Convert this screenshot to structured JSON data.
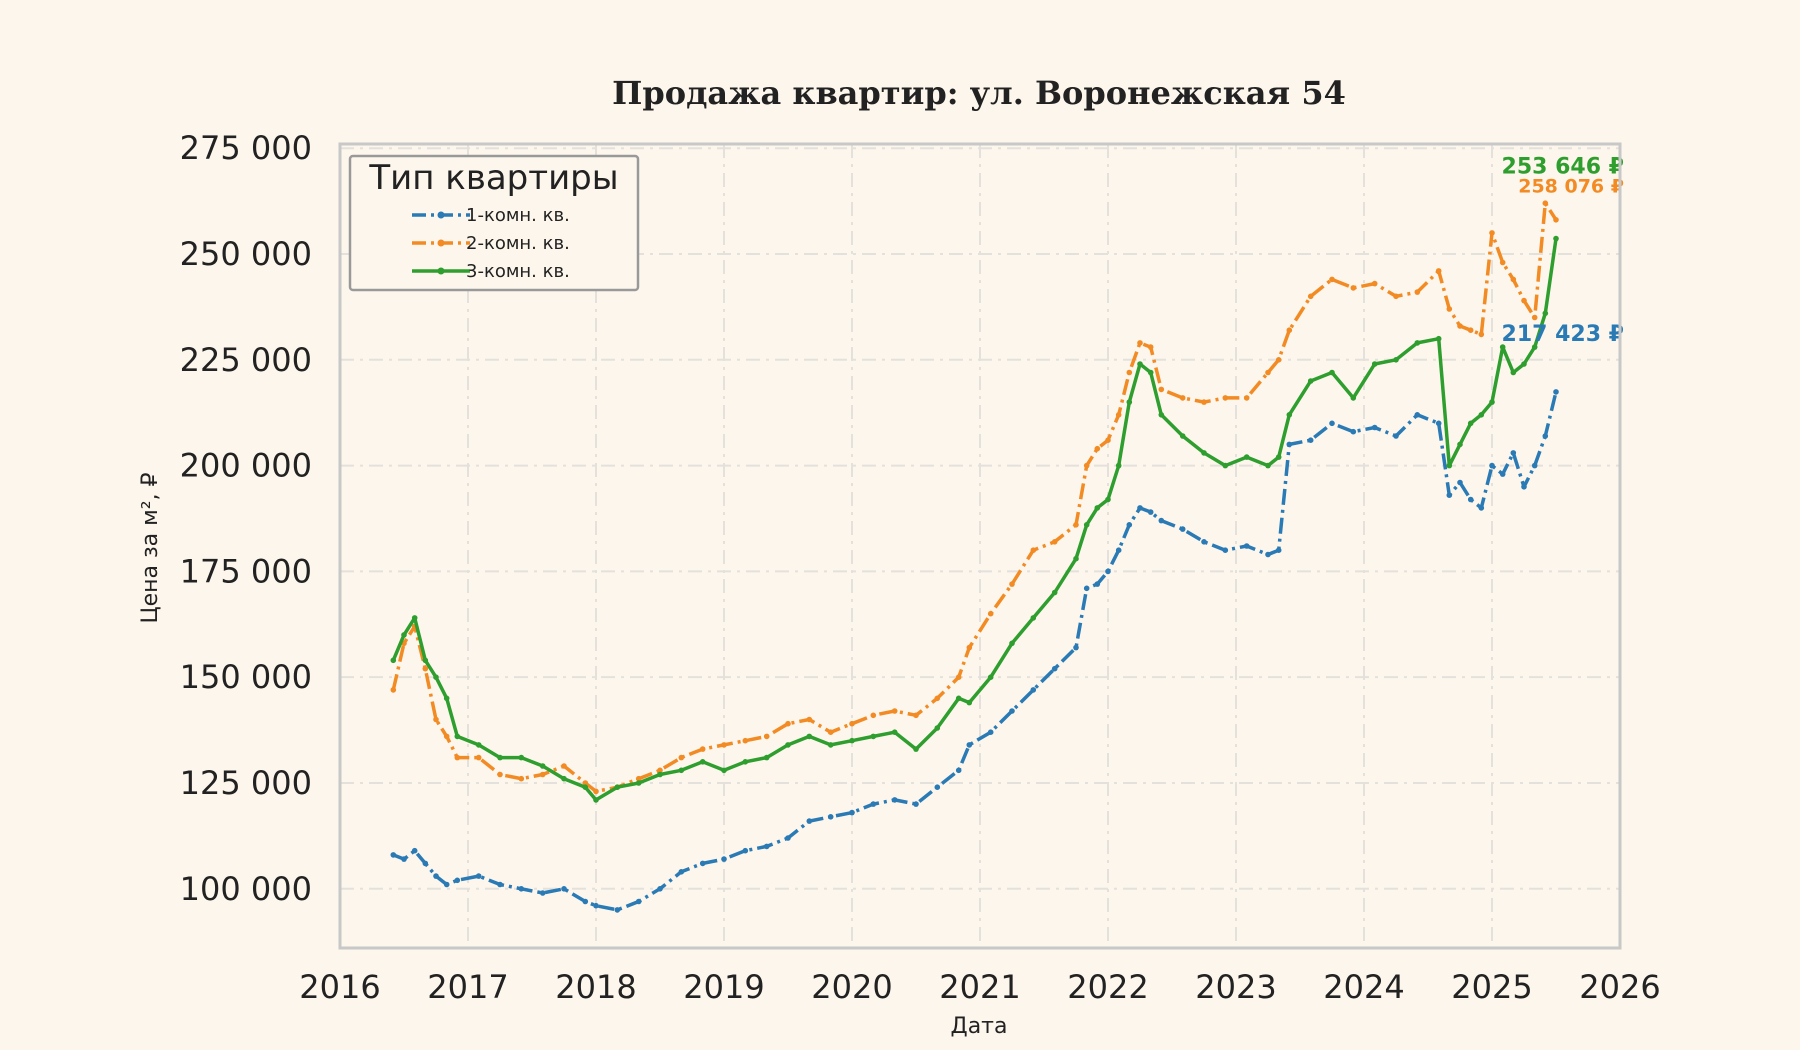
{
  "chart_data": {
    "type": "line",
    "title": "Продажа квартир: ул. Воронежская 54",
    "xlabel": "Дата",
    "ylabel": "Цена за м², ₽",
    "xlim": [
      "2016-01-01",
      "2026-01-01"
    ],
    "ylim": [
      86000,
      276000
    ],
    "x_ticks": [
      "2016",
      "2017",
      "2018",
      "2019",
      "2020",
      "2021",
      "2022",
      "2023",
      "2024",
      "2025",
      "2026"
    ],
    "y_ticks": [
      100000,
      125000,
      150000,
      175000,
      200000,
      225000,
      250000,
      275000
    ],
    "y_tick_labels": [
      "100 000",
      "125 000",
      "150 000",
      "175 000",
      "200 000",
      "225 000",
      "250 000",
      "275 000"
    ],
    "grid": true,
    "legend": {
      "title": "Тип квартиры",
      "position": "top-left"
    },
    "series": [
      {
        "name": "1-комн. кв.",
        "color": "#2a7ab5",
        "style": "dash-dot",
        "end_label": "217 423 ₽",
        "x": [
          "2016-06",
          "2016-07",
          "2016-08",
          "2016-09",
          "2016-10",
          "2016-11",
          "2016-12",
          "2017-02",
          "2017-04",
          "2017-06",
          "2017-08",
          "2017-10",
          "2017-12",
          "2018-01",
          "2018-03",
          "2018-05",
          "2018-07",
          "2018-09",
          "2018-11",
          "2019-01",
          "2019-03",
          "2019-05",
          "2019-07",
          "2019-09",
          "2019-11",
          "2020-01",
          "2020-03",
          "2020-05",
          "2020-07",
          "2020-09",
          "2020-11",
          "2020-12",
          "2021-02",
          "2021-04",
          "2021-06",
          "2021-08",
          "2021-10",
          "2021-11",
          "2021-12",
          "2022-01",
          "2022-02",
          "2022-03",
          "2022-04",
          "2022-05",
          "2022-06",
          "2022-08",
          "2022-10",
          "2022-12",
          "2023-02",
          "2023-04",
          "2023-05",
          "2023-06",
          "2023-08",
          "2023-10",
          "2023-12",
          "2024-02",
          "2024-04",
          "2024-06",
          "2024-08",
          "2024-09",
          "2024-10",
          "2024-11",
          "2024-12",
          "2025-01",
          "2025-02",
          "2025-03",
          "2025-04",
          "2025-05",
          "2025-06",
          "2025-07"
        ],
        "y": [
          108000,
          107000,
          109000,
          106000,
          103000,
          101000,
          102000,
          103000,
          101000,
          100000,
          99000,
          100000,
          97000,
          96000,
          95000,
          97000,
          100000,
          104000,
          106000,
          107000,
          109000,
          110000,
          112000,
          116000,
          117000,
          118000,
          120000,
          121000,
          120000,
          124000,
          128000,
          134000,
          137000,
          142000,
          147000,
          152000,
          157000,
          171000,
          172000,
          175000,
          180000,
          186000,
          190000,
          189000,
          187000,
          185000,
          182000,
          180000,
          181000,
          179000,
          180000,
          205000,
          206000,
          210000,
          208000,
          209000,
          207000,
          212000,
          210000,
          193000,
          196000,
          192000,
          190000,
          200000,
          198000,
          203000,
          195000,
          200000,
          207000,
          217423
        ]
      },
      {
        "name": "2-комн. кв.",
        "color": "#f28b24",
        "style": "dash-dot",
        "end_label": "258 076 ₽",
        "x": [
          "2016-06",
          "2016-07",
          "2016-08",
          "2016-09",
          "2016-10",
          "2016-11",
          "2016-12",
          "2017-02",
          "2017-04",
          "2017-06",
          "2017-08",
          "2017-10",
          "2017-12",
          "2018-01",
          "2018-03",
          "2018-05",
          "2018-07",
          "2018-09",
          "2018-11",
          "2019-01",
          "2019-03",
          "2019-05",
          "2019-07",
          "2019-09",
          "2019-11",
          "2020-01",
          "2020-03",
          "2020-05",
          "2020-07",
          "2020-09",
          "2020-11",
          "2020-12",
          "2021-02",
          "2021-04",
          "2021-06",
          "2021-08",
          "2021-10",
          "2021-11",
          "2021-12",
          "2022-01",
          "2022-02",
          "2022-03",
          "2022-04",
          "2022-05",
          "2022-06",
          "2022-08",
          "2022-10",
          "2022-12",
          "2023-02",
          "2023-04",
          "2023-05",
          "2023-06",
          "2023-08",
          "2023-10",
          "2023-12",
          "2024-02",
          "2024-04",
          "2024-06",
          "2024-08",
          "2024-09",
          "2024-10",
          "2024-11",
          "2024-12",
          "2025-01",
          "2025-02",
          "2025-03",
          "2025-04",
          "2025-05",
          "2025-06",
          "2025-07"
        ],
        "y": [
          147000,
          158000,
          162000,
          152000,
          140000,
          136000,
          131000,
          131000,
          127000,
          126000,
          127000,
          129000,
          125000,
          123000,
          124000,
          126000,
          128000,
          131000,
          133000,
          134000,
          135000,
          136000,
          139000,
          140000,
          137000,
          139000,
          141000,
          142000,
          141000,
          145000,
          150000,
          157000,
          165000,
          172000,
          180000,
          182000,
          186000,
          200000,
          204000,
          206000,
          212000,
          222000,
          229000,
          228000,
          218000,
          216000,
          215000,
          216000,
          216000,
          222000,
          225000,
          232000,
          240000,
          244000,
          242000,
          243000,
          240000,
          241000,
          246000,
          237000,
          233000,
          232000,
          231000,
          255000,
          248000,
          244000,
          239000,
          235000,
          262000,
          258076
        ]
      },
      {
        "name": "3-комн. кв.",
        "color": "#2e9e2e",
        "style": "solid",
        "end_label": "253 646 ₽",
        "x": [
          "2016-06",
          "2016-07",
          "2016-08",
          "2016-09",
          "2016-10",
          "2016-11",
          "2016-12",
          "2017-02",
          "2017-04",
          "2017-06",
          "2017-08",
          "2017-10",
          "2017-12",
          "2018-01",
          "2018-03",
          "2018-05",
          "2018-07",
          "2018-09",
          "2018-11",
          "2019-01",
          "2019-03",
          "2019-05",
          "2019-07",
          "2019-09",
          "2019-11",
          "2020-01",
          "2020-03",
          "2020-05",
          "2020-07",
          "2020-09",
          "2020-11",
          "2020-12",
          "2021-02",
          "2021-04",
          "2021-06",
          "2021-08",
          "2021-10",
          "2021-11",
          "2021-12",
          "2022-01",
          "2022-02",
          "2022-03",
          "2022-04",
          "2022-05",
          "2022-06",
          "2022-08",
          "2022-10",
          "2022-12",
          "2023-02",
          "2023-04",
          "2023-05",
          "2023-06",
          "2023-08",
          "2023-10",
          "2023-12",
          "2024-02",
          "2024-04",
          "2024-06",
          "2024-08",
          "2024-09",
          "2024-10",
          "2024-11",
          "2024-12",
          "2025-01",
          "2025-02",
          "2025-03",
          "2025-04",
          "2025-05",
          "2025-06",
          "2025-07"
        ],
        "y": [
          154000,
          160000,
          164000,
          154000,
          150000,
          145000,
          136000,
          134000,
          131000,
          131000,
          129000,
          126000,
          124000,
          121000,
          124000,
          125000,
          127000,
          128000,
          130000,
          128000,
          130000,
          131000,
          134000,
          136000,
          134000,
          135000,
          136000,
          137000,
          133000,
          138000,
          145000,
          144000,
          150000,
          158000,
          164000,
          170000,
          178000,
          186000,
          190000,
          192000,
          200000,
          215000,
          224000,
          222000,
          212000,
          207000,
          203000,
          200000,
          202000,
          200000,
          202000,
          212000,
          220000,
          222000,
          216000,
          224000,
          225000,
          229000,
          230000,
          200000,
          205000,
          210000,
          212000,
          215000,
          228000,
          222000,
          224000,
          228000,
          236000,
          253646
        ]
      }
    ]
  }
}
